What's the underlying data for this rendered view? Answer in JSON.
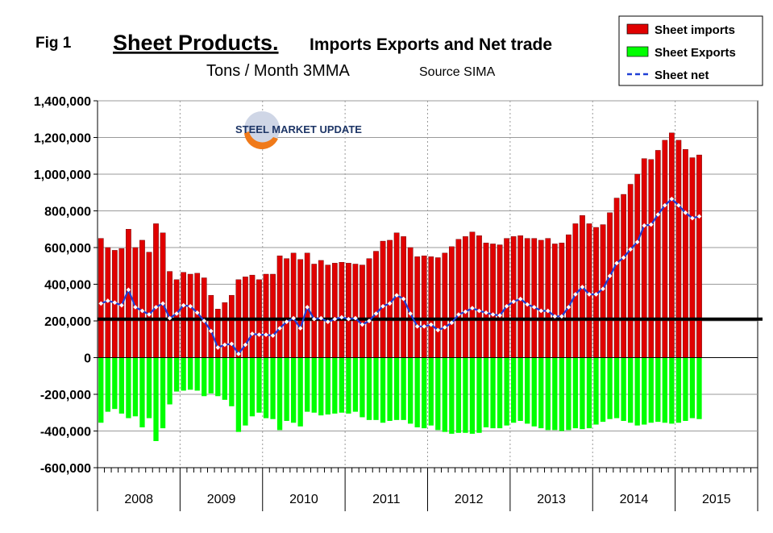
{
  "header": {
    "fig_label": "Fig 1",
    "title_main": "Sheet Products.",
    "title_rest": "Imports Exports and Net trade",
    "subtitle": "Tons / Month 3MMA",
    "source": "Source SIMA",
    "watermark": "STEEL MARKET UPDATE"
  },
  "colors": {
    "imports": "#e00000",
    "exports": "#00ff00",
    "net": "#1f3fd6",
    "grid": "#9a9a9a",
    "axis": "#000000"
  },
  "chart_data": {
    "type": "bar",
    "title": "Sheet Products. Imports Exports and Net trade",
    "subtitle": "Tons / Month 3MMA",
    "source": "Source SIMA",
    "xlabel": "",
    "ylabel": "",
    "ylim": [
      -600000,
      1400000
    ],
    "yticks": [
      1400000,
      1200000,
      1000000,
      800000,
      600000,
      400000,
      200000,
      0,
      -200000,
      -400000,
      -600000
    ],
    "ytick_labels": [
      "1,400,000",
      "1,200,000",
      "1,000,000",
      "800,000",
      "600,000",
      "400,000",
      "200,000",
      "0",
      "-200,000",
      "-400,000",
      "-600,000"
    ],
    "years": [
      "2008",
      "2009",
      "2010",
      "2011",
      "2012",
      "2013",
      "2014",
      "2015"
    ],
    "months_per_year": 12,
    "reference_line": 210000,
    "legend_position": "top-right",
    "series": [
      {
        "name": "Sheet imports",
        "type": "bar",
        "values": [
          650000,
          600000,
          585000,
          595000,
          700000,
          600000,
          640000,
          575000,
          730000,
          680000,
          470000,
          425000,
          465000,
          455000,
          460000,
          435000,
          340000,
          265000,
          300000,
          340000,
          425000,
          440000,
          450000,
          425000,
          455000,
          455000,
          555000,
          540000,
          570000,
          535000,
          570000,
          510000,
          530000,
          505000,
          515000,
          520000,
          515000,
          510000,
          505000,
          540000,
          580000,
          635000,
          640000,
          680000,
          660000,
          600000,
          550000,
          555000,
          550000,
          545000,
          570000,
          605000,
          645000,
          660000,
          685000,
          665000,
          625000,
          620000,
          615000,
          650000,
          660000,
          665000,
          650000,
          650000,
          640000,
          650000,
          620000,
          625000,
          670000,
          730000,
          775000,
          730000,
          710000,
          725000,
          790000,
          870000,
          890000,
          945000,
          1000000,
          1085000,
          1080000,
          1130000,
          1185000,
          1225000,
          1185000,
          1135000,
          1090000,
          1105000
        ]
      },
      {
        "name": "Sheet Exports",
        "type": "bar",
        "values": [
          -355000,
          -295000,
          -280000,
          -305000,
          -330000,
          -320000,
          -380000,
          -330000,
          -455000,
          -385000,
          -255000,
          -185000,
          -180000,
          -175000,
          -180000,
          -210000,
          -195000,
          -210000,
          -230000,
          -265000,
          -405000,
          -370000,
          -320000,
          -300000,
          -330000,
          -335000,
          -395000,
          -345000,
          -355000,
          -375000,
          -295000,
          -300000,
          -315000,
          -310000,
          -305000,
          -300000,
          -305000,
          -295000,
          -325000,
          -340000,
          -340000,
          -355000,
          -345000,
          -340000,
          -340000,
          -360000,
          -380000,
          -385000,
          -370000,
          -395000,
          -405000,
          -415000,
          -410000,
          -410000,
          -415000,
          -410000,
          -380000,
          -385000,
          -385000,
          -370000,
          -355000,
          -345000,
          -360000,
          -375000,
          -385000,
          -395000,
          -395000,
          -400000,
          -395000,
          -385000,
          -390000,
          -385000,
          -365000,
          -350000,
          -335000,
          -330000,
          -345000,
          -355000,
          -370000,
          -365000,
          -355000,
          -350000,
          -355000,
          -360000,
          -355000,
          -345000,
          -330000,
          -335000
        ]
      },
      {
        "name": "Sheet net",
        "type": "line",
        "values": [
          295000,
          310000,
          300000,
          285000,
          370000,
          275000,
          255000,
          235000,
          275000,
          295000,
          215000,
          240000,
          285000,
          280000,
          245000,
          200000,
          145000,
          55000,
          70000,
          75000,
          20000,
          70000,
          130000,
          125000,
          125000,
          120000,
          160000,
          195000,
          215000,
          160000,
          275000,
          210000,
          215000,
          195000,
          210000,
          220000,
          210000,
          215000,
          180000,
          200000,
          240000,
          280000,
          295000,
          340000,
          320000,
          240000,
          170000,
          170000,
          180000,
          150000,
          165000,
          190000,
          235000,
          250000,
          270000,
          255000,
          245000,
          235000,
          230000,
          280000,
          305000,
          320000,
          290000,
          275000,
          255000,
          255000,
          225000,
          225000,
          275000,
          345000,
          385000,
          345000,
          345000,
          375000,
          445000,
          515000,
          545000,
          590000,
          630000,
          720000,
          725000,
          780000,
          830000,
          865000,
          830000,
          790000,
          760000,
          770000
        ]
      }
    ]
  }
}
